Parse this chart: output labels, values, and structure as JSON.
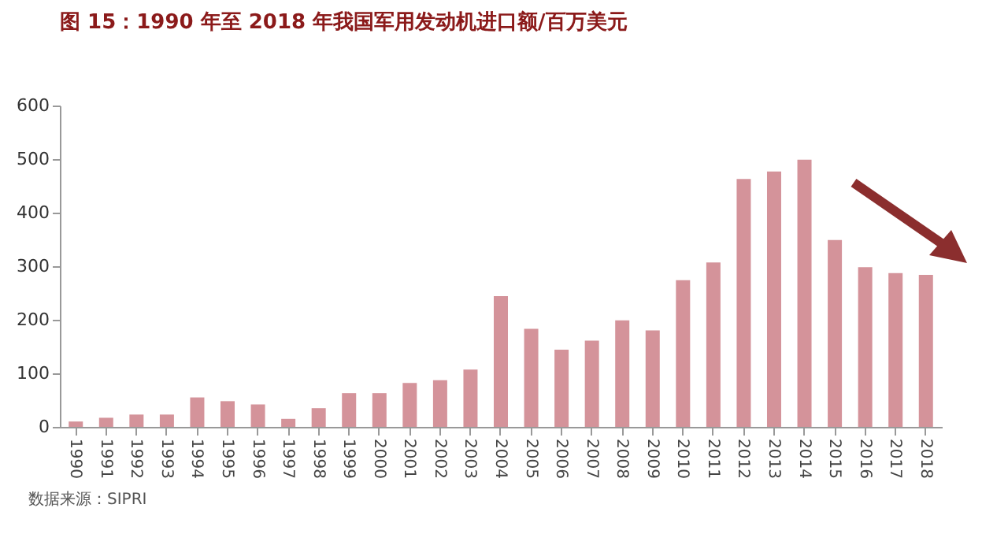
{
  "chart_data": {
    "type": "bar",
    "title": "图 15：1990 年至 2018 年我国军用发动机进口额/百万美元",
    "categories": [
      "1990",
      "1991",
      "1992",
      "1993",
      "1994",
      "1995",
      "1996",
      "1997",
      "1998",
      "1999",
      "2000",
      "2001",
      "2002",
      "2003",
      "2004",
      "2005",
      "2006",
      "2007",
      "2008",
      "2009",
      "2010",
      "2011",
      "2012",
      "2013",
      "2014",
      "2015",
      "2016",
      "2017",
      "2018"
    ],
    "values": [
      10,
      17,
      23,
      23,
      55,
      48,
      42,
      15,
      35,
      63,
      63,
      82,
      87,
      107,
      244,
      183,
      144,
      161,
      199,
      180,
      274,
      307,
      463,
      477,
      499,
      349,
      298,
      287,
      284
    ],
    "color": "#d4939a",
    "ylim": [
      0,
      600
    ],
    "yticks": [
      0,
      100,
      200,
      300,
      400,
      500,
      600
    ],
    "annotations": [
      "数据来源：SIPRI"
    ]
  }
}
